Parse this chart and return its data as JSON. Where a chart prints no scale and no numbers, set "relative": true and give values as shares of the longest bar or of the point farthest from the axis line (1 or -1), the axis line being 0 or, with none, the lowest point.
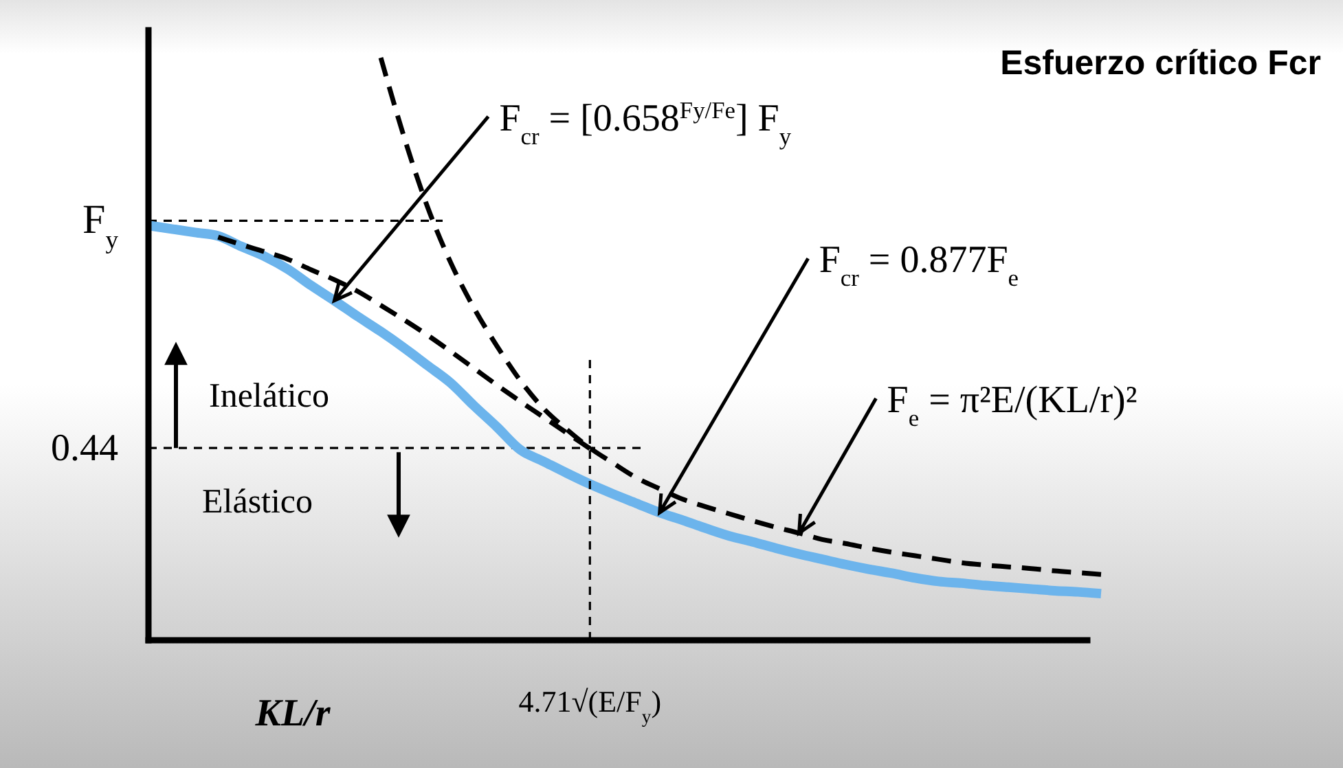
{
  "chart_data": {
    "type": "line",
    "title": "Esfuerzo crítico Fcr",
    "xlabel": "KL/r",
    "relative": true,
    "categories": [
      null,
      null,
      null,
      null,
      null,
      null,
      null,
      null,
      null,
      null,
      null,
      null,
      null,
      null,
      null,
      null,
      null,
      null,
      null,
      null,
      null,
      null,
      null,
      null,
      null,
      null,
      null,
      null,
      null,
      null,
      null,
      null,
      null,
      null,
      null,
      null,
      null,
      null,
      null,
      null,
      null,
      null
    ],
    "series": [
      {
        "color": "#6cb4ec",
        "line_style": "solid",
        "values": [
          0.712,
          0.706,
          0.7,
          0.694,
          0.676,
          0.659,
          0.637,
          0.609,
          0.583,
          0.556,
          0.53,
          0.502,
          0.472,
          0.442,
          0.403,
          0.366,
          0.327,
          0.307,
          0.287,
          0.268,
          0.251,
          0.235,
          0.219,
          0.206,
          0.192,
          0.179,
          0.169,
          0.158,
          0.148,
          0.139,
          0.13,
          0.122,
          0.115,
          0.107,
          0.101,
          0.098,
          0.094,
          0.091,
          0.088,
          0.085,
          0.083,
          0.08
        ]
      },
      {
        "color": "#000000",
        "line_style": "dashed",
        "values": [
          null,
          null,
          null,
          null,
          null,
          null,
          null,
          null,
          null,
          null,
          1.0,
          0.864,
          0.745,
          0.649,
          0.571,
          0.505,
          0.446,
          0.398,
          0.362,
          0.33,
          0.304,
          0.279,
          0.26,
          0.242,
          0.229,
          0.217,
          0.205,
          0.194,
          0.184,
          0.173,
          0.166,
          0.158,
          0.151,
          0.145,
          0.139,
          0.133,
          0.129,
          0.126,
          0.123,
          0.119,
          0.116,
          0.113
        ]
      },
      {
        "color": "#000000",
        "line_style": "dashed",
        "values": [
          null,
          null,
          null,
          0.692,
          0.679,
          0.667,
          0.654,
          0.636,
          0.619,
          0.599,
          0.575,
          0.55,
          0.524,
          0.496,
          0.467,
          0.438,
          0.41,
          0.383,
          0.356,
          0.329,
          null,
          null,
          null,
          null,
          null,
          null,
          null,
          null,
          null,
          null,
          null,
          null,
          null,
          null,
          null,
          null,
          null,
          null,
          null,
          null,
          null,
          null
        ]
      }
    ],
    "ref_lines": [
      {
        "axis": "y",
        "value": 0.72,
        "line_style": "dashed"
      },
      {
        "axis": "y",
        "value": 0.33,
        "line_style": "dashed"
      }
    ],
    "annotations": [
      "F$_{y}$",
      "0.44",
      "4.71√(E/F$_{y}$)",
      "F$_{cr}$ = [0.658$^{Fy/Fe}$] F$_{y}$",
      "F$_{cr}$ = 0.877F$_{e}$",
      "F$_{e}$ = π²E/(KL/r)²",
      "Inelático",
      "Elástico"
    ]
  }
}
